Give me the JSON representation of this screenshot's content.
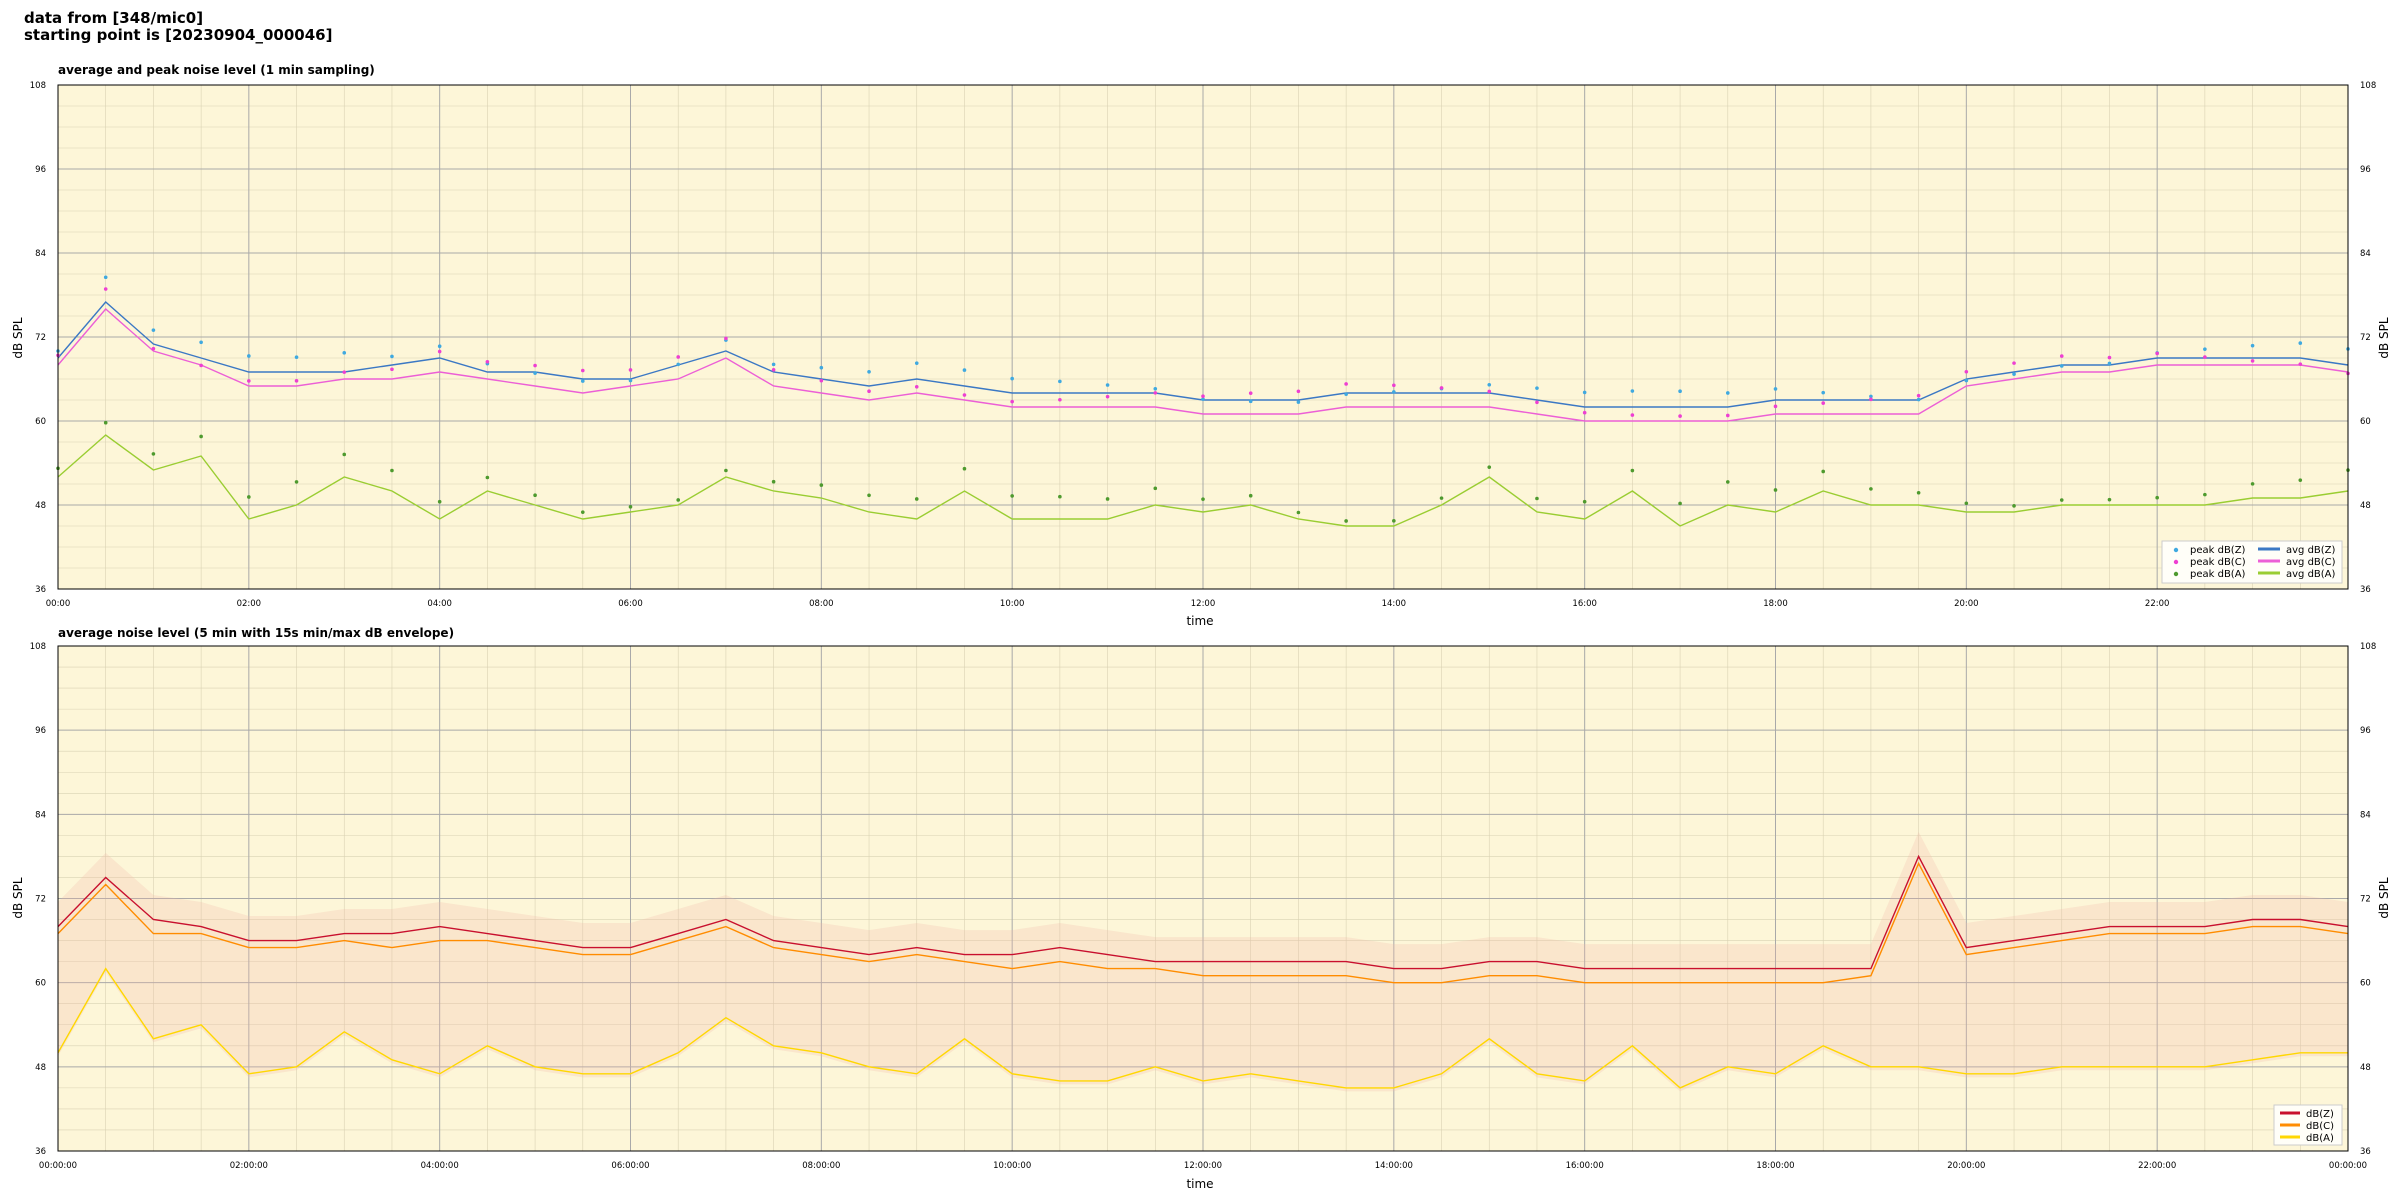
{
  "header": {
    "line1": "data from [348/mic0]",
    "line2": "starting point is [20230904_000046]"
  },
  "colors": {
    "plot_bg": "#fdf6d8",
    "peak_z": "#3fa9e0",
    "peak_c": "#ee3fd2",
    "peak_a": "#4e9a2e",
    "avg_z": "#3b78c4",
    "avg_c": "#ec5fd6",
    "avg_a": "#9acd32",
    "p2_z": "#c8102e",
    "p2_c": "#ff8c00",
    "p2_a": "#ffd700",
    "envelope": "#f4b6a8"
  },
  "chart_data": [
    {
      "type": "line",
      "title": "average and peak noise level (1 min sampling)",
      "xlabel": "time",
      "ylabel": "dB SPL",
      "ylim": [
        36,
        108
      ],
      "xlim_hours": [
        0,
        24
      ],
      "x_tick_labels": [
        "00:00",
        "02:00",
        "04:00",
        "06:00",
        "08:00",
        "10:00",
        "12:00",
        "14:00",
        "16:00",
        "18:00",
        "20:00",
        "22:00"
      ],
      "y_tick_labels": [
        "36",
        "48",
        "60",
        "72",
        "84",
        "96",
        "108"
      ],
      "grid": true,
      "legend_position": "bottom-right",
      "legend": [
        "peak dB(Z)",
        "peak dB(C)",
        "peak dB(A)",
        "avg dB(Z)",
        "avg dB(C)",
        "avg dB(A)"
      ],
      "x_hours": [
        0,
        0.5,
        1,
        1.5,
        2,
        2.5,
        3,
        3.5,
        4,
        4.5,
        5,
        5.5,
        6,
        6.5,
        7,
        7.5,
        8,
        8.5,
        9,
        9.5,
        10,
        10.5,
        11,
        11.5,
        12,
        12.5,
        13,
        13.5,
        14,
        14.5,
        15,
        15.5,
        16,
        16.5,
        17,
        17.5,
        18,
        18.5,
        19,
        19.5,
        20,
        20.5,
        21,
        21.5,
        22,
        22.5,
        23,
        23.5,
        24
      ],
      "series": [
        {
          "name": "avg dB(Z)",
          "values": [
            69,
            77,
            71,
            69,
            67,
            67,
            67,
            68,
            69,
            67,
            67,
            66,
            66,
            68,
            70,
            67,
            66,
            65,
            66,
            65,
            64,
            64,
            64,
            64,
            63,
            63,
            63,
            64,
            64,
            64,
            64,
            63,
            62,
            62,
            62,
            62,
            63,
            63,
            63,
            63,
            66,
            67,
            68,
            68,
            69,
            69,
            69,
            69,
            68
          ]
        },
        {
          "name": "avg dB(C)",
          "values": [
            68,
            76,
            70,
            68,
            65,
            65,
            66,
            66,
            67,
            66,
            65,
            64,
            65,
            66,
            69,
            65,
            64,
            63,
            64,
            63,
            62,
            62,
            62,
            62,
            61,
            61,
            61,
            62,
            62,
            62,
            62,
            61,
            60,
            60,
            60,
            60,
            61,
            61,
            61,
            61,
            65,
            66,
            67,
            67,
            68,
            68,
            68,
            68,
            67
          ]
        },
        {
          "name": "avg dB(A)",
          "values": [
            52,
            58,
            53,
            55,
            46,
            48,
            52,
            50,
            46,
            50,
            48,
            46,
            47,
            48,
            52,
            50,
            49,
            47,
            46,
            50,
            46,
            46,
            46,
            48,
            47,
            48,
            46,
            45,
            45,
            48,
            52,
            47,
            46,
            50,
            45,
            48,
            47,
            50,
            48,
            48,
            47,
            47,
            48,
            48,
            48,
            48,
            49,
            49,
            50
          ]
        },
        {
          "name": "peak dB(Z)",
          "values": [
            70,
            80,
            72,
            70,
            68,
            68,
            69,
            69,
            71,
            69,
            68,
            67,
            67,
            69,
            72,
            68,
            67,
            66,
            67,
            66,
            65,
            65,
            65,
            65,
            64,
            64,
            64,
            65,
            65,
            65,
            65,
            64,
            63,
            63,
            63,
            63,
            64,
            64,
            64,
            64,
            67,
            68,
            69,
            69,
            70,
            70,
            70,
            70,
            69
          ]
        },
        {
          "name": "peak dB(C)",
          "values": [
            69,
            79,
            71,
            69,
            67,
            67,
            68,
            68,
            70,
            68,
            67,
            66,
            66,
            68,
            71,
            67,
            66,
            65,
            66,
            65,
            64,
            64,
            64,
            64,
            63,
            63,
            63,
            64,
            64,
            64,
            64,
            63,
            62,
            62,
            62,
            62,
            63,
            63,
            63,
            63,
            66,
            67,
            68,
            68,
            69,
            69,
            69,
            69,
            68
          ]
        },
        {
          "name": "peak dB(A)",
          "values": [
            54,
            60,
            55,
            57,
            48,
            50,
            54,
            52,
            48,
            52,
            50,
            48,
            49,
            50,
            54,
            52,
            51,
            49,
            48,
            52,
            48,
            48,
            48,
            50,
            49,
            50,
            48,
            47,
            47,
            50,
            54,
            49,
            48,
            52,
            47,
            50,
            49,
            52,
            50,
            50,
            49,
            49,
            50,
            50,
            50,
            50,
            51,
            51,
            52
          ]
        }
      ]
    },
    {
      "type": "line",
      "title": "average noise level (5 min with 15s min/max dB envelope)",
      "xlabel": "time",
      "ylabel": "dB SPL",
      "ylim": [
        36,
        108
      ],
      "xlim_hours": [
        0,
        24
      ],
      "x_tick_labels": [
        "00:00:00",
        "02:00:00",
        "04:00:00",
        "06:00:00",
        "08:00:00",
        "10:00:00",
        "12:00:00",
        "14:00:00",
        "16:00:00",
        "18:00:00",
        "20:00:00",
        "22:00:00",
        "00:00:00"
      ],
      "y_tick_labels": [
        "36",
        "48",
        "60",
        "72",
        "84",
        "96",
        "108"
      ],
      "grid": true,
      "legend_position": "bottom-right",
      "legend": [
        "dB(Z)",
        "dB(C)",
        "dB(A)"
      ],
      "x_hours": [
        0,
        0.5,
        1,
        1.5,
        2,
        2.5,
        3,
        3.5,
        4,
        4.5,
        5,
        5.5,
        6,
        6.5,
        7,
        7.5,
        8,
        8.5,
        9,
        9.5,
        10,
        10.5,
        11,
        11.5,
        12,
        12.5,
        13,
        13.5,
        14,
        14.5,
        15,
        15.5,
        16,
        16.5,
        17,
        17.5,
        18,
        18.5,
        19,
        19.5,
        20,
        20.5,
        21,
        21.5,
        22,
        22.5,
        23,
        23.5,
        24
      ],
      "series": [
        {
          "name": "dB(Z)",
          "values": [
            68,
            75,
            69,
            68,
            66,
            66,
            67,
            67,
            68,
            67,
            66,
            65,
            65,
            67,
            69,
            66,
            65,
            64,
            65,
            64,
            64,
            65,
            64,
            63,
            63,
            63,
            63,
            63,
            62,
            62,
            63,
            63,
            62,
            62,
            62,
            62,
            62,
            62,
            62,
            78,
            65,
            66,
            67,
            68,
            68,
            68,
            69,
            69,
            68
          ]
        },
        {
          "name": "dB(C)",
          "values": [
            67,
            74,
            67,
            67,
            65,
            65,
            66,
            65,
            66,
            66,
            65,
            64,
            64,
            66,
            68,
            65,
            64,
            63,
            64,
            63,
            62,
            63,
            62,
            62,
            61,
            61,
            61,
            61,
            60,
            60,
            61,
            61,
            60,
            60,
            60,
            60,
            60,
            60,
            61,
            77,
            64,
            65,
            66,
            67,
            67,
            67,
            68,
            68,
            67
          ]
        },
        {
          "name": "dB(A)",
          "values": [
            50,
            62,
            52,
            54,
            47,
            48,
            53,
            49,
            47,
            51,
            48,
            47,
            47,
            50,
            55,
            51,
            50,
            48,
            47,
            52,
            47,
            46,
            46,
            48,
            46,
            47,
            46,
            45,
            45,
            47,
            52,
            47,
            46,
            51,
            45,
            48,
            47,
            51,
            48,
            48,
            47,
            47,
            48,
            48,
            48,
            48,
            49,
            50,
            50
          ]
        }
      ]
    }
  ]
}
